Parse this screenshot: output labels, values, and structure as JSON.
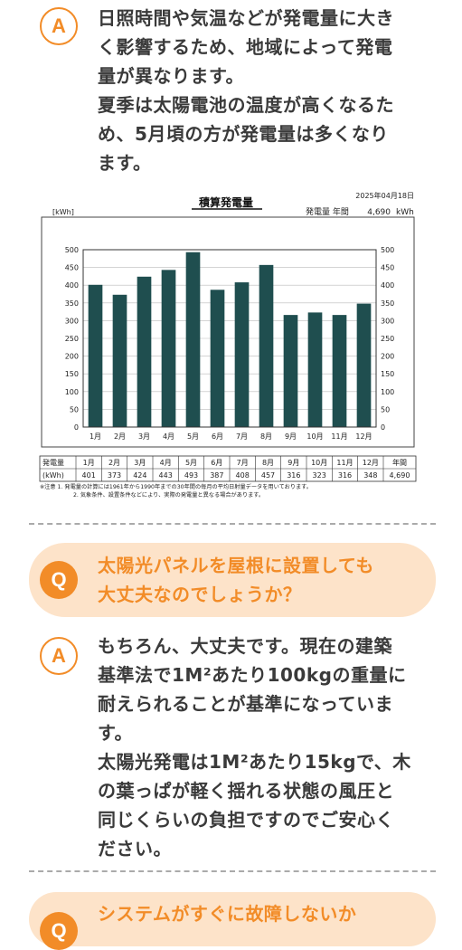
{
  "faq": [
    {
      "answer_badge": "A",
      "answer_lines": [
        "日照時間や気温などが発電量に大き",
        "く影響するため、地域によって発電",
        "量が異なります。",
        "夏季は太陽電池の温度が高くなるた",
        "め、5月頃の方が発電量は多くなり",
        "ます。"
      ]
    },
    {
      "question_badge": "Q",
      "question_lines": [
        "太陽光パネルを屋根に設置しても",
        "大丈夫なのでしょうか？"
      ],
      "answer_badge": "A",
      "answer_lines": [
        "もちろん、大丈夫です。現在の建築",
        "基準法で1M²あたり100kgの重量に",
        "耐えられることが基準になっていま",
        "す。",
        "太陽光発電は1M²あたり15kgで、木",
        "の葉っぱが軽く揺れる状態の風圧と",
        "同じくらいの負担ですのでご安心く",
        "ださい。"
      ]
    },
    {
      "question_badge": "Q",
      "question_lines": [
        "システムがすぐに故障しないか"
      ]
    }
  ],
  "chart_data": {
    "type": "bar",
    "title": "積算発電量",
    "date": "2025年04月18日",
    "annual_label": "発電量 年間",
    "annual_value": "4,690",
    "annual_unit": "kWh",
    "ylabel": "[kWh]",
    "ylim": [
      0,
      500
    ],
    "yticks": [
      0,
      50,
      100,
      150,
      200,
      250,
      300,
      350,
      400,
      450,
      500
    ],
    "categories": [
      "1月",
      "2月",
      "3月",
      "4月",
      "5月",
      "6月",
      "7月",
      "8月",
      "9月",
      "10月",
      "11月",
      "12月"
    ],
    "values": [
      401,
      373,
      424,
      443,
      493,
      387,
      408,
      457,
      316,
      323,
      316,
      348
    ],
    "bar_color": "#1f4e4f",
    "table_row_label": "発電量",
    "table_unit_label": "(kWh)",
    "table_total_header": "年間",
    "table_total": "4,690",
    "notes": [
      "※注意 1. 発電量の計算には1961年から1990年までの30年間の毎月の平均日射量データを用いております。",
      "2. 気象条件、設置条件などにより、実際の発電量と異なる場合があります。"
    ]
  }
}
